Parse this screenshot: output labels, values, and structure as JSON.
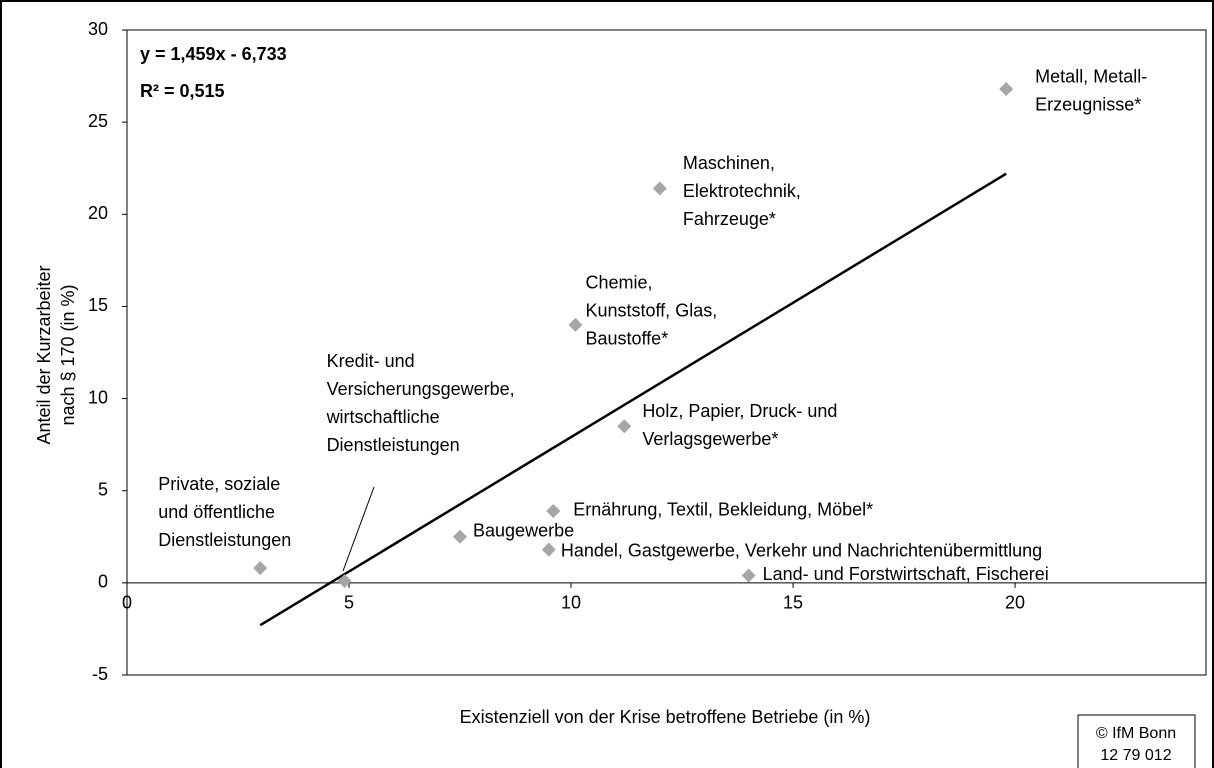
{
  "chart_data": {
    "type": "scatter",
    "xlabel": "Existenziell von der Krise betroffene Betriebe (in %)",
    "ylabel": [
      "Anteil der Kurzarbeiter",
      "nach § 170 (in %)"
    ],
    "annotations": [
      "y = 1,459x - 6,733",
      "R² = 0,515"
    ],
    "source": [
      "© IfM Bonn",
      "12 79 012"
    ],
    "xlim": [
      0,
      24.3
    ],
    "ylim": [
      -5,
      30
    ],
    "xticks": [
      0,
      5,
      10,
      15,
      20
    ],
    "yticks": [
      -5,
      0,
      5,
      10,
      15,
      20,
      25,
      30
    ],
    "series": [
      {
        "color": "#a6a6a6",
        "x": [
          3.0,
          4.9,
          7.5,
          9.5,
          9.6,
          11.2,
          10.1,
          12.0,
          19.8,
          14.0
        ],
        "values": [
          0.8,
          0.1,
          2.5,
          1.8,
          3.9,
          8.5,
          14.0,
          21.4,
          26.8,
          0.4
        ],
        "point_labels": [
          [
            "Private, soziale",
            "und öffentliche",
            "Dienstleistungen"
          ],
          [
            "Kredit- und",
            "Versicherungsgewerbe,",
            "wirtschaftliche",
            "Dienstleistungen"
          ],
          [
            "Baugewerbe"
          ],
          [
            "Handel, Gastgewerbe, Verkehr und Nachrichtenübermittlung"
          ],
          [
            "Ernährung, Textil, Bekleidung, Möbel*"
          ],
          [
            "Holz, Papier, Druck- und",
            "Verlagsgewerbe*"
          ],
          [
            "Chemie,",
            "Kunststoff, Glas,",
            "Baustoffe*"
          ],
          [
            "Maschinen,",
            "Elektrotechnik,",
            "Fahrzeuge*"
          ],
          [
            "Metall, Metall-",
            "Erzeugnisse*"
          ],
          [
            "Land- und Forstwirtschaft, Fischerei"
          ]
        ]
      }
    ],
    "trendline": {
      "color": "#000000",
      "x": [
        3.0,
        19.8
      ],
      "y": [
        -2.3,
        22.2
      ]
    }
  }
}
